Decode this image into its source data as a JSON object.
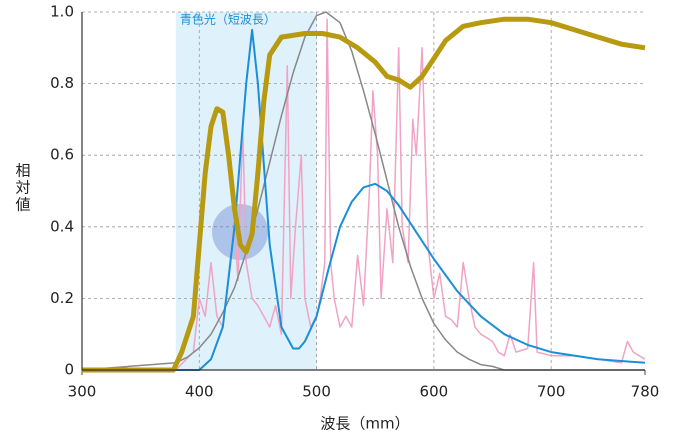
{
  "chart_data": {
    "type": "line",
    "xlabel": "波長（mm）",
    "ylabel": "相対値",
    "annotation": "青色光（短波長）",
    "highlight_range": [
      380,
      500
    ],
    "highlight_color": "#dff1fb",
    "xlim": [
      300,
      780
    ],
    "xticks": [
      300,
      400,
      500,
      600,
      700,
      780
    ],
    "ylim": [
      0,
      1
    ],
    "yticks": [
      0,
      0.2,
      0.4,
      0.6,
      {
        "value": 0.8,
        "label": "0.8"
      },
      {
        "value": 1,
        "label": "1.0"
      }
    ],
    "grid": true,
    "series": [
      {
        "color": "#f0a3c4",
        "width": 1.5,
        "x": [
          380,
          395,
          400,
          405,
          410,
          415,
          420,
          425,
          430,
          433,
          437,
          440,
          445,
          450,
          455,
          460,
          465,
          470,
          475,
          478,
          482,
          487,
          490,
          495,
          500,
          503,
          507,
          509,
          512,
          515,
          520,
          525,
          530,
          535,
          540,
          545,
          548,
          552,
          555,
          560,
          565,
          570,
          573,
          578,
          582,
          585,
          590,
          595,
          600,
          605,
          610,
          615,
          620,
          625,
          630,
          635,
          640,
          650,
          655,
          660,
          665,
          670,
          680,
          685,
          688,
          700,
          720,
          740,
          760,
          765,
          770,
          780
        ],
        "values": [
          0,
          0.05,
          0.2,
          0.15,
          0.3,
          0.15,
          0.12,
          0.25,
          0.4,
          0.25,
          0.68,
          0.3,
          0.2,
          0.18,
          0.15,
          0.12,
          0.18,
          0.1,
          0.85,
          0.2,
          0.4,
          0.6,
          0.2,
          0.12,
          0.15,
          0.2,
          0.3,
          0.98,
          0.3,
          0.2,
          0.12,
          0.15,
          0.12,
          0.32,
          0.18,
          0.5,
          0.78,
          0.6,
          0.2,
          0.45,
          0.3,
          0.9,
          0.4,
          0.3,
          0.7,
          0.6,
          0.9,
          0.35,
          0.2,
          0.27,
          0.15,
          0.14,
          0.12,
          0.3,
          0.2,
          0.12,
          0.1,
          0.08,
          0.05,
          0.04,
          0.1,
          0.05,
          0.06,
          0.3,
          0.05,
          0.04,
          0.04,
          0.03,
          0.02,
          0.08,
          0.05,
          0.03
        ]
      },
      {
        "color": "#888888",
        "width": 1.5,
        "x": [
          300,
          380,
          390,
          400,
          410,
          420,
          430,
          440,
          450,
          460,
          470,
          480,
          490,
          500,
          508,
          520,
          530,
          540,
          550,
          560,
          570,
          580,
          590,
          600,
          610,
          620,
          630,
          640,
          650,
          660,
          780
        ],
        "values": [
          0,
          0.02,
          0.036,
          0.062,
          0.1,
          0.16,
          0.23,
          0.33,
          0.45,
          0.58,
          0.71,
          0.83,
          0.93,
          0.99,
          1,
          0.97,
          0.89,
          0.78,
          0.66,
          0.53,
          0.4,
          0.29,
          0.2,
          0.13,
          0.084,
          0.05,
          0.03,
          0.015,
          0.01,
          0,
          0
        ]
      },
      {
        "color": "#1a8fd8",
        "width": 2,
        "x": [
          300,
          400,
          410,
          420,
          430,
          440,
          445,
          450,
          460,
          470,
          480,
          485,
          490,
          500,
          510,
          520,
          530,
          540,
          550,
          560,
          570,
          580,
          590,
          600,
          620,
          640,
          660,
          680,
          700,
          740,
          780
        ],
        "values": [
          0,
          0,
          0.03,
          0.12,
          0.4,
          0.8,
          0.95,
          0.8,
          0.35,
          0.12,
          0.06,
          0.06,
          0.08,
          0.15,
          0.28,
          0.4,
          0.47,
          0.51,
          0.52,
          0.5,
          0.46,
          0.41,
          0.36,
          0.31,
          0.22,
          0.15,
          0.1,
          0.07,
          0.05,
          0.03,
          0.02
        ]
      },
      {
        "color": "#b89a10",
        "width": 5,
        "x": [
          300,
          378,
          385,
          395,
          400,
          405,
          410,
          415,
          420,
          425,
          430,
          435,
          440,
          445,
          450,
          455,
          460,
          470,
          490,
          505,
          520,
          535,
          550,
          560,
          570,
          580,
          590,
          600,
          610,
          625,
          640,
          660,
          680,
          700,
          720,
          740,
          760,
          780
        ],
        "values": [
          0,
          0,
          0.05,
          0.15,
          0.35,
          0.55,
          0.68,
          0.73,
          0.72,
          0.6,
          0.45,
          0.35,
          0.33,
          0.38,
          0.55,
          0.75,
          0.88,
          0.93,
          0.94,
          0.94,
          0.93,
          0.9,
          0.86,
          0.82,
          0.81,
          0.79,
          0.82,
          0.87,
          0.92,
          0.96,
          0.97,
          0.98,
          0.98,
          0.97,
          0.95,
          0.93,
          0.91,
          0.9
        ]
      }
    ]
  }
}
